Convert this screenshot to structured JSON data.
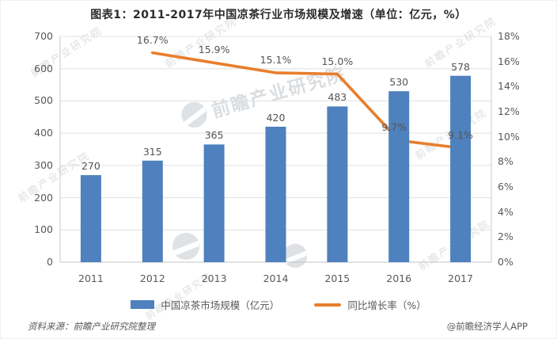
{
  "title": "图表1：2011-2017年中国凉茶行业市场规模及增速（单位：亿元，%）",
  "footer": {
    "source": "资料来源：前瞻产业研究院整理",
    "credit": "@前瞻经济学人APP"
  },
  "watermark": {
    "text": "前瞻产业研究院",
    "logo": "qianzhan-circle-logo"
  },
  "chart_data": {
    "type": "combo",
    "title": "图表1：2011-2017年中国凉茶行业市场规模及增速（单位：亿元，%）",
    "categories": [
      "2011",
      "2012",
      "2013",
      "2014",
      "2015",
      "2016",
      "2017"
    ],
    "series": [
      {
        "name": "中国凉茶市场规模（亿元）",
        "type": "bar",
        "color": "#4E81BD",
        "values": [
          270,
          315,
          365,
          420,
          483,
          530,
          578
        ],
        "labels": [
          "270",
          "315",
          "365",
          "420",
          "483",
          "530",
          "578"
        ]
      },
      {
        "name": "同比增长率（%）",
        "type": "line",
        "color": "#E87E2D",
        "values": [
          null,
          16.7,
          15.9,
          15.1,
          15.0,
          9.7,
          9.1
        ],
        "labels": [
          "",
          "16.7%",
          "15.9%",
          "15.1%",
          "15.0%",
          "9.7%",
          "9.1%"
        ]
      }
    ],
    "left_axis": {
      "min": 0,
      "max": 700,
      "step": 100
    },
    "right_axis": {
      "min": 0,
      "max": 18,
      "step": 2,
      "suffix": "%"
    },
    "grid": true,
    "legend_position": "bottom"
  }
}
